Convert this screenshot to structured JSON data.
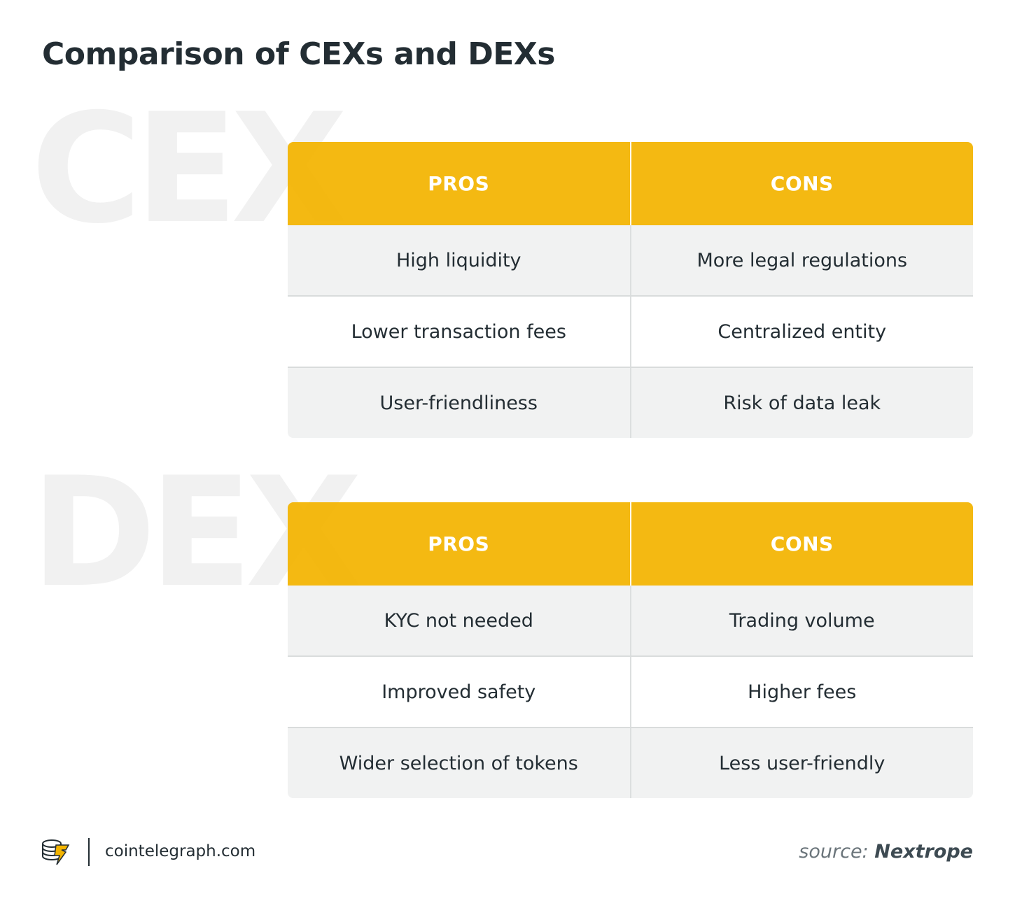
{
  "title": "Comparison of CEXs and DEXs",
  "colors": {
    "header_bg": "#F3B400",
    "row_shade": "#F1F2F2",
    "text_dark": "#232D33",
    "watermark": "#F1F1F1"
  },
  "cex": {
    "watermark": "CEX",
    "header": {
      "pros": "PROS",
      "cons": "CONS"
    },
    "rows": [
      {
        "pro": "High liquidity",
        "con": "More legal regulations"
      },
      {
        "pro": "Lower transaction fees",
        "con": "Centralized entity"
      },
      {
        "pro": "User-friendliness",
        "con": "Risk of data leak"
      }
    ]
  },
  "dex": {
    "watermark": "DEX",
    "header": {
      "pros": "PROS",
      "cons": "CONS"
    },
    "rows": [
      {
        "pro": "KYC not needed",
        "con": "Trading volume"
      },
      {
        "pro": "Improved safety",
        "con": "Higher fees"
      },
      {
        "pro": "Wider selection of tokens",
        "con": "Less user-friendly"
      }
    ]
  },
  "footer": {
    "logo_icon": "cointelegraph-logo-icon",
    "site": "cointelegraph.com",
    "source_label": "source:",
    "source_name": "Nextrope"
  }
}
